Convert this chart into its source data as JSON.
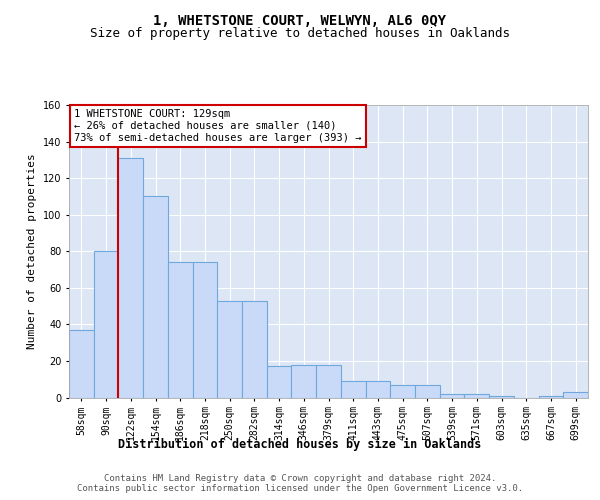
{
  "title": "1, WHETSTONE COURT, WELWYN, AL6 0QY",
  "subtitle": "Size of property relative to detached houses in Oaklands",
  "xlabel": "Distribution of detached houses by size in Oaklands",
  "ylabel": "Number of detached properties",
  "bin_labels": [
    "58sqm",
    "90sqm",
    "122sqm",
    "154sqm",
    "186sqm",
    "218sqm",
    "250sqm",
    "282sqm",
    "314sqm",
    "346sqm",
    "379sqm",
    "411sqm",
    "443sqm",
    "475sqm",
    "507sqm",
    "539sqm",
    "571sqm",
    "603sqm",
    "635sqm",
    "667sqm",
    "699sqm"
  ],
  "bar_values": [
    37,
    80,
    131,
    110,
    74,
    74,
    53,
    53,
    17,
    18,
    18,
    9,
    9,
    7,
    7,
    2,
    2,
    1,
    0,
    1,
    3
  ],
  "bar_color": "#c9daf8",
  "bar_edge_color": "#6fa8dc",
  "red_line_x": 1.5,
  "red_line_color": "#cc0000",
  "annotation_text": "1 WHETSTONE COURT: 129sqm\n← 26% of detached houses are smaller (140)\n73% of semi-detached houses are larger (393) →",
  "annotation_box_color": "#ffffff",
  "annotation_box_edge": "#cc0000",
  "ylim": [
    0,
    160
  ],
  "yticks": [
    0,
    20,
    40,
    60,
    80,
    100,
    120,
    140,
    160
  ],
  "footer_text": "Contains HM Land Registry data © Crown copyright and database right 2024.\nContains public sector information licensed under the Open Government Licence v3.0.",
  "bg_color": "#ffffff",
  "plot_bg_color": "#dce6f5",
  "grid_color": "#ffffff",
  "title_fontsize": 10,
  "subtitle_fontsize": 9,
  "xlabel_fontsize": 8.5,
  "ylabel_fontsize": 8,
  "tick_fontsize": 7,
  "annotation_fontsize": 7.5,
  "footer_fontsize": 6.5
}
